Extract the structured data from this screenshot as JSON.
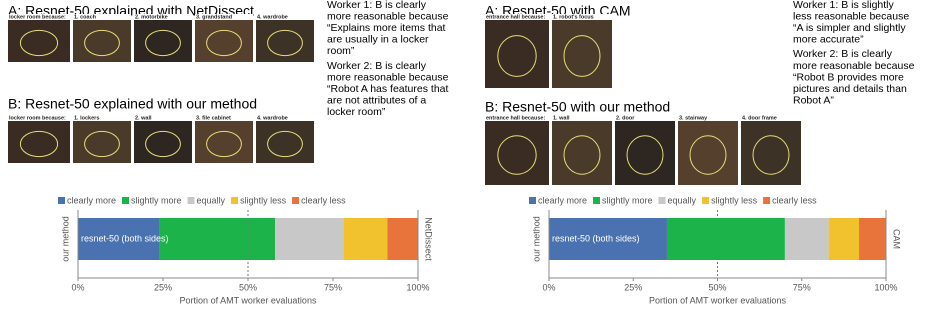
{
  "panels": [
    {
      "a_title": "A: Resnet-50 explained with NetDissect",
      "a_captions": [
        "locker room because:",
        "1. coach",
        "2. motorbike",
        "3. grandstand",
        "4. wardrobe"
      ],
      "b_title": "B: Resnet-50 explained with our method",
      "b_captions": [
        "locker room because:",
        "1. lockers",
        "2. wall",
        "3. file cabinet",
        "4. wardrobe"
      ],
      "workers": [
        [
          "Worker 1: B is clearly",
          "more reasonable because",
          "“Explains more items that",
          "are usually in a locker",
          "room”"
        ],
        [
          "Worker 2: B is clearly",
          "more reasonable because",
          "“Robot A has features that",
          "are not attributes of a",
          "locker room”"
        ]
      ]
    },
    {
      "a_title": "A: Resnet-50 with CAM",
      "a_captions": [
        "entrance hall because:",
        "1. robot's focus"
      ],
      "b_title": "B: Resnet-50 with our method",
      "b_captions": [
        "entrance hall because:",
        "1. wall",
        "2. door",
        "3. stairway",
        "4. door frame"
      ],
      "workers": [
        [
          "Worker 1: B is slightly",
          "less reasonable because",
          "“A is simpler and slightly",
          "more accurate”"
        ],
        [
          "Worker 2: B is clearly",
          "more reasonable because",
          "“Robot B provides more",
          "pictures and details than",
          "Robot A”"
        ]
      ]
    }
  ],
  "chart_data": [
    {
      "type": "bar",
      "orientation": "horizontal",
      "stacked": true,
      "categories": [
        "resnet-50 (both sides)"
      ],
      "series": [
        {
          "name": "clearly more",
          "color": "#4a72b0",
          "values": [
            24
          ]
        },
        {
          "name": "slightly more",
          "color": "#1bb34a",
          "values": [
            34
          ]
        },
        {
          "name": "equally",
          "color": "#c8c8c8",
          "values": [
            20
          ]
        },
        {
          "name": "slightly less",
          "color": "#f2c12e",
          "values": [
            13
          ]
        },
        {
          "name": "clearly less",
          "color": "#e8743b",
          "values": [
            9
          ]
        }
      ],
      "xlim": [
        0,
        100
      ],
      "xticks": [
        {
          "value": 0,
          "label": "0%"
        },
        {
          "value": 25,
          "label": "25%"
        },
        {
          "value": 50,
          "label": "50%"
        },
        {
          "value": 75,
          "label": "75%"
        },
        {
          "value": 100,
          "label": "100%"
        }
      ],
      "vline": 50,
      "xlabel": "Portion of AMT worker evaluations",
      "ylabel": "our method",
      "y2label": "NetDissect",
      "legend": "top"
    },
    {
      "type": "bar",
      "orientation": "horizontal",
      "stacked": true,
      "categories": [
        "resnet-50 (both sides)"
      ],
      "series": [
        {
          "name": "clearly more",
          "color": "#4a72b0",
          "values": [
            35
          ]
        },
        {
          "name": "slightly more",
          "color": "#1bb34a",
          "values": [
            35
          ]
        },
        {
          "name": "equally",
          "color": "#c8c8c8",
          "values": [
            13
          ]
        },
        {
          "name": "slightly less",
          "color": "#f2c12e",
          "values": [
            9
          ]
        },
        {
          "name": "clearly less",
          "color": "#e8743b",
          "values": [
            8
          ]
        }
      ],
      "xlim": [
        0,
        100
      ],
      "xticks": [
        {
          "value": 0,
          "label": "0%"
        },
        {
          "value": 25,
          "label": "25%"
        },
        {
          "value": 50,
          "label": "50%"
        },
        {
          "value": 75,
          "label": "75%"
        },
        {
          "value": 100,
          "label": "100%"
        }
      ],
      "vline": 50,
      "xlabel": "Portion of AMT worker evaluations",
      "ylabel": "our method",
      "y2label": "CAM",
      "legend": "top"
    }
  ]
}
